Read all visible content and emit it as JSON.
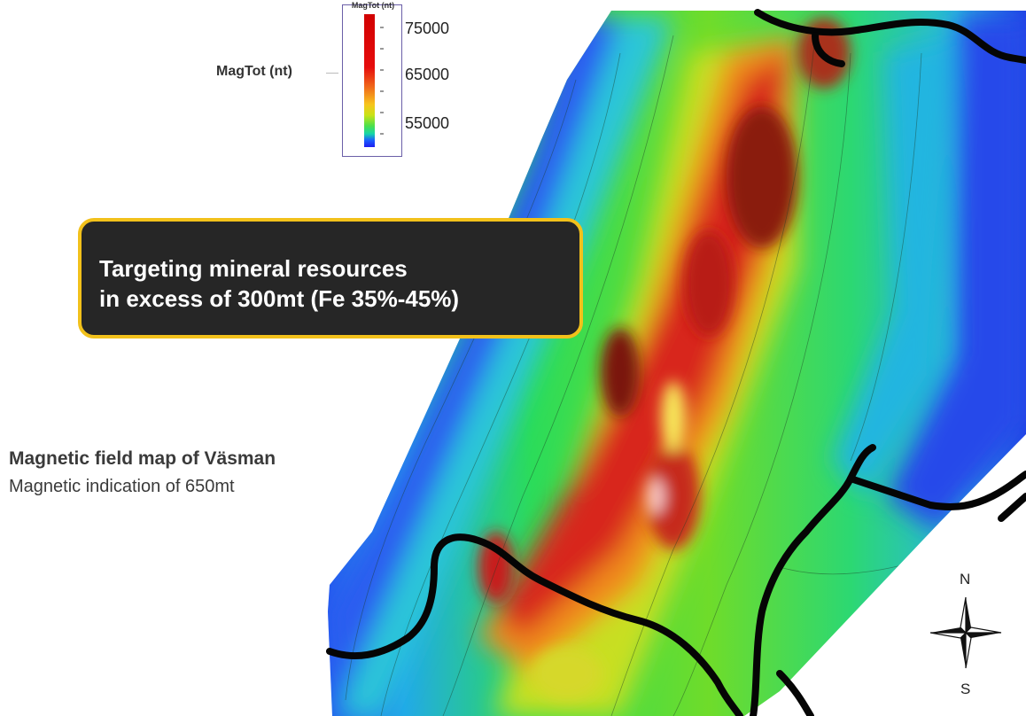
{
  "legend": {
    "title": "MagTot (nt)",
    "values": [
      "75000",
      "65000",
      "55000"
    ]
  },
  "callout": {
    "line1": "Targeting mineral resources",
    "line2": "in excess of 300mt (Fe 35%-45%)"
  },
  "map": {
    "title": "Magnetic field map of Väsman",
    "subtitle": "Magnetic indication of 650mt"
  },
  "compass": {
    "north": "N",
    "south": "S"
  },
  "colors": {
    "callout_bg": "#262626",
    "callout_border": "#f2c11b",
    "high_field": "#d41414",
    "low_field": "#1f3fe0"
  }
}
